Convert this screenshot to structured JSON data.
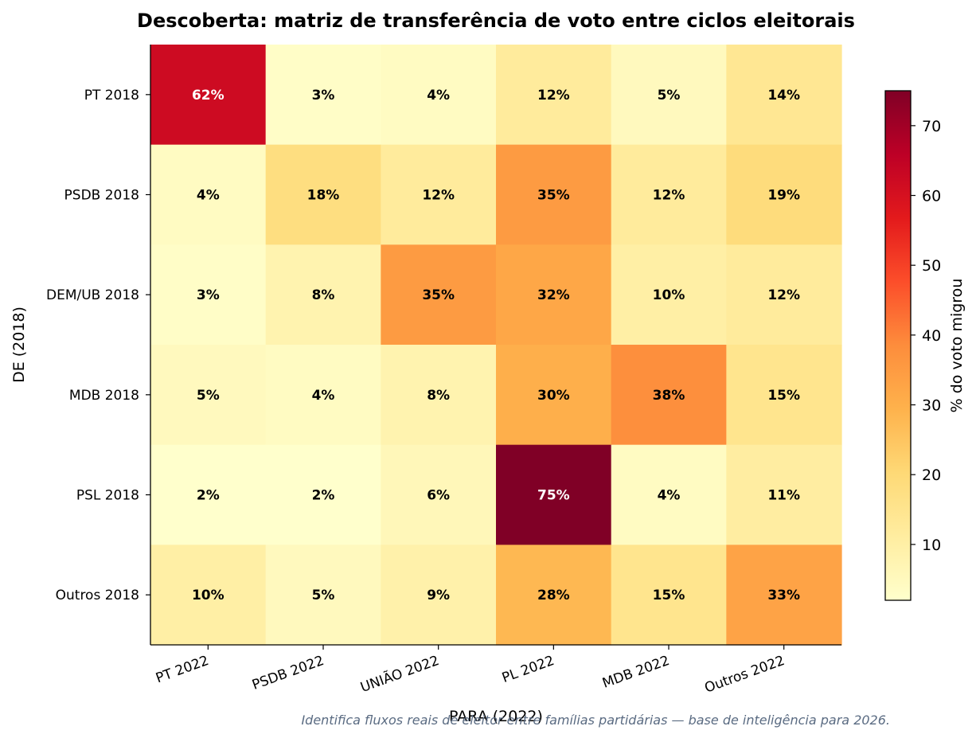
{
  "chart_data": {
    "type": "heatmap",
    "title": "Descoberta: matriz de transferência de voto entre ciclos eleitorais",
    "xlabel": "PARA (2022)",
    "ylabel": "DE (2018)",
    "x_categories": [
      "PT 2022",
      "PSDB 2022",
      "UNIÃO 2022",
      "PL 2022",
      "MDB 2022",
      "Outros 2022"
    ],
    "y_categories": [
      "PT 2018",
      "PSDB 2018",
      "DEM/UB 2018",
      "MDB 2018",
      "PSL 2018",
      "Outros 2018"
    ],
    "values": [
      [
        62,
        3,
        4,
        12,
        5,
        14
      ],
      [
        4,
        18,
        12,
        35,
        12,
        19
      ],
      [
        3,
        8,
        35,
        32,
        10,
        12
      ],
      [
        5,
        4,
        8,
        30,
        38,
        15
      ],
      [
        2,
        2,
        6,
        75,
        4,
        11
      ],
      [
        10,
        5,
        9,
        28,
        15,
        33
      ]
    ],
    "cell_labels": [
      [
        "62%",
        "3%",
        "4%",
        "12%",
        "5%",
        "14%"
      ],
      [
        "4%",
        "18%",
        "12%",
        "35%",
        "12%",
        "19%"
      ],
      [
        "3%",
        "8%",
        "35%",
        "32%",
        "10%",
        "12%"
      ],
      [
        "5%",
        "4%",
        "8%",
        "30%",
        "38%",
        "15%"
      ],
      [
        "2%",
        "2%",
        "6%",
        "75%",
        "4%",
        "11%"
      ],
      [
        "10%",
        "5%",
        "9%",
        "28%",
        "15%",
        "33%"
      ]
    ],
    "colormap": "YlOrRd",
    "colorbar": {
      "label": "% do voto migrou",
      "range": [
        2,
        75
      ],
      "ticks": [
        10,
        20,
        30,
        40,
        50,
        60,
        70
      ]
    },
    "footnote": "Identifica fluxos reais de eleitor entre famílias partidárias — base de inteligência para 2026."
  }
}
